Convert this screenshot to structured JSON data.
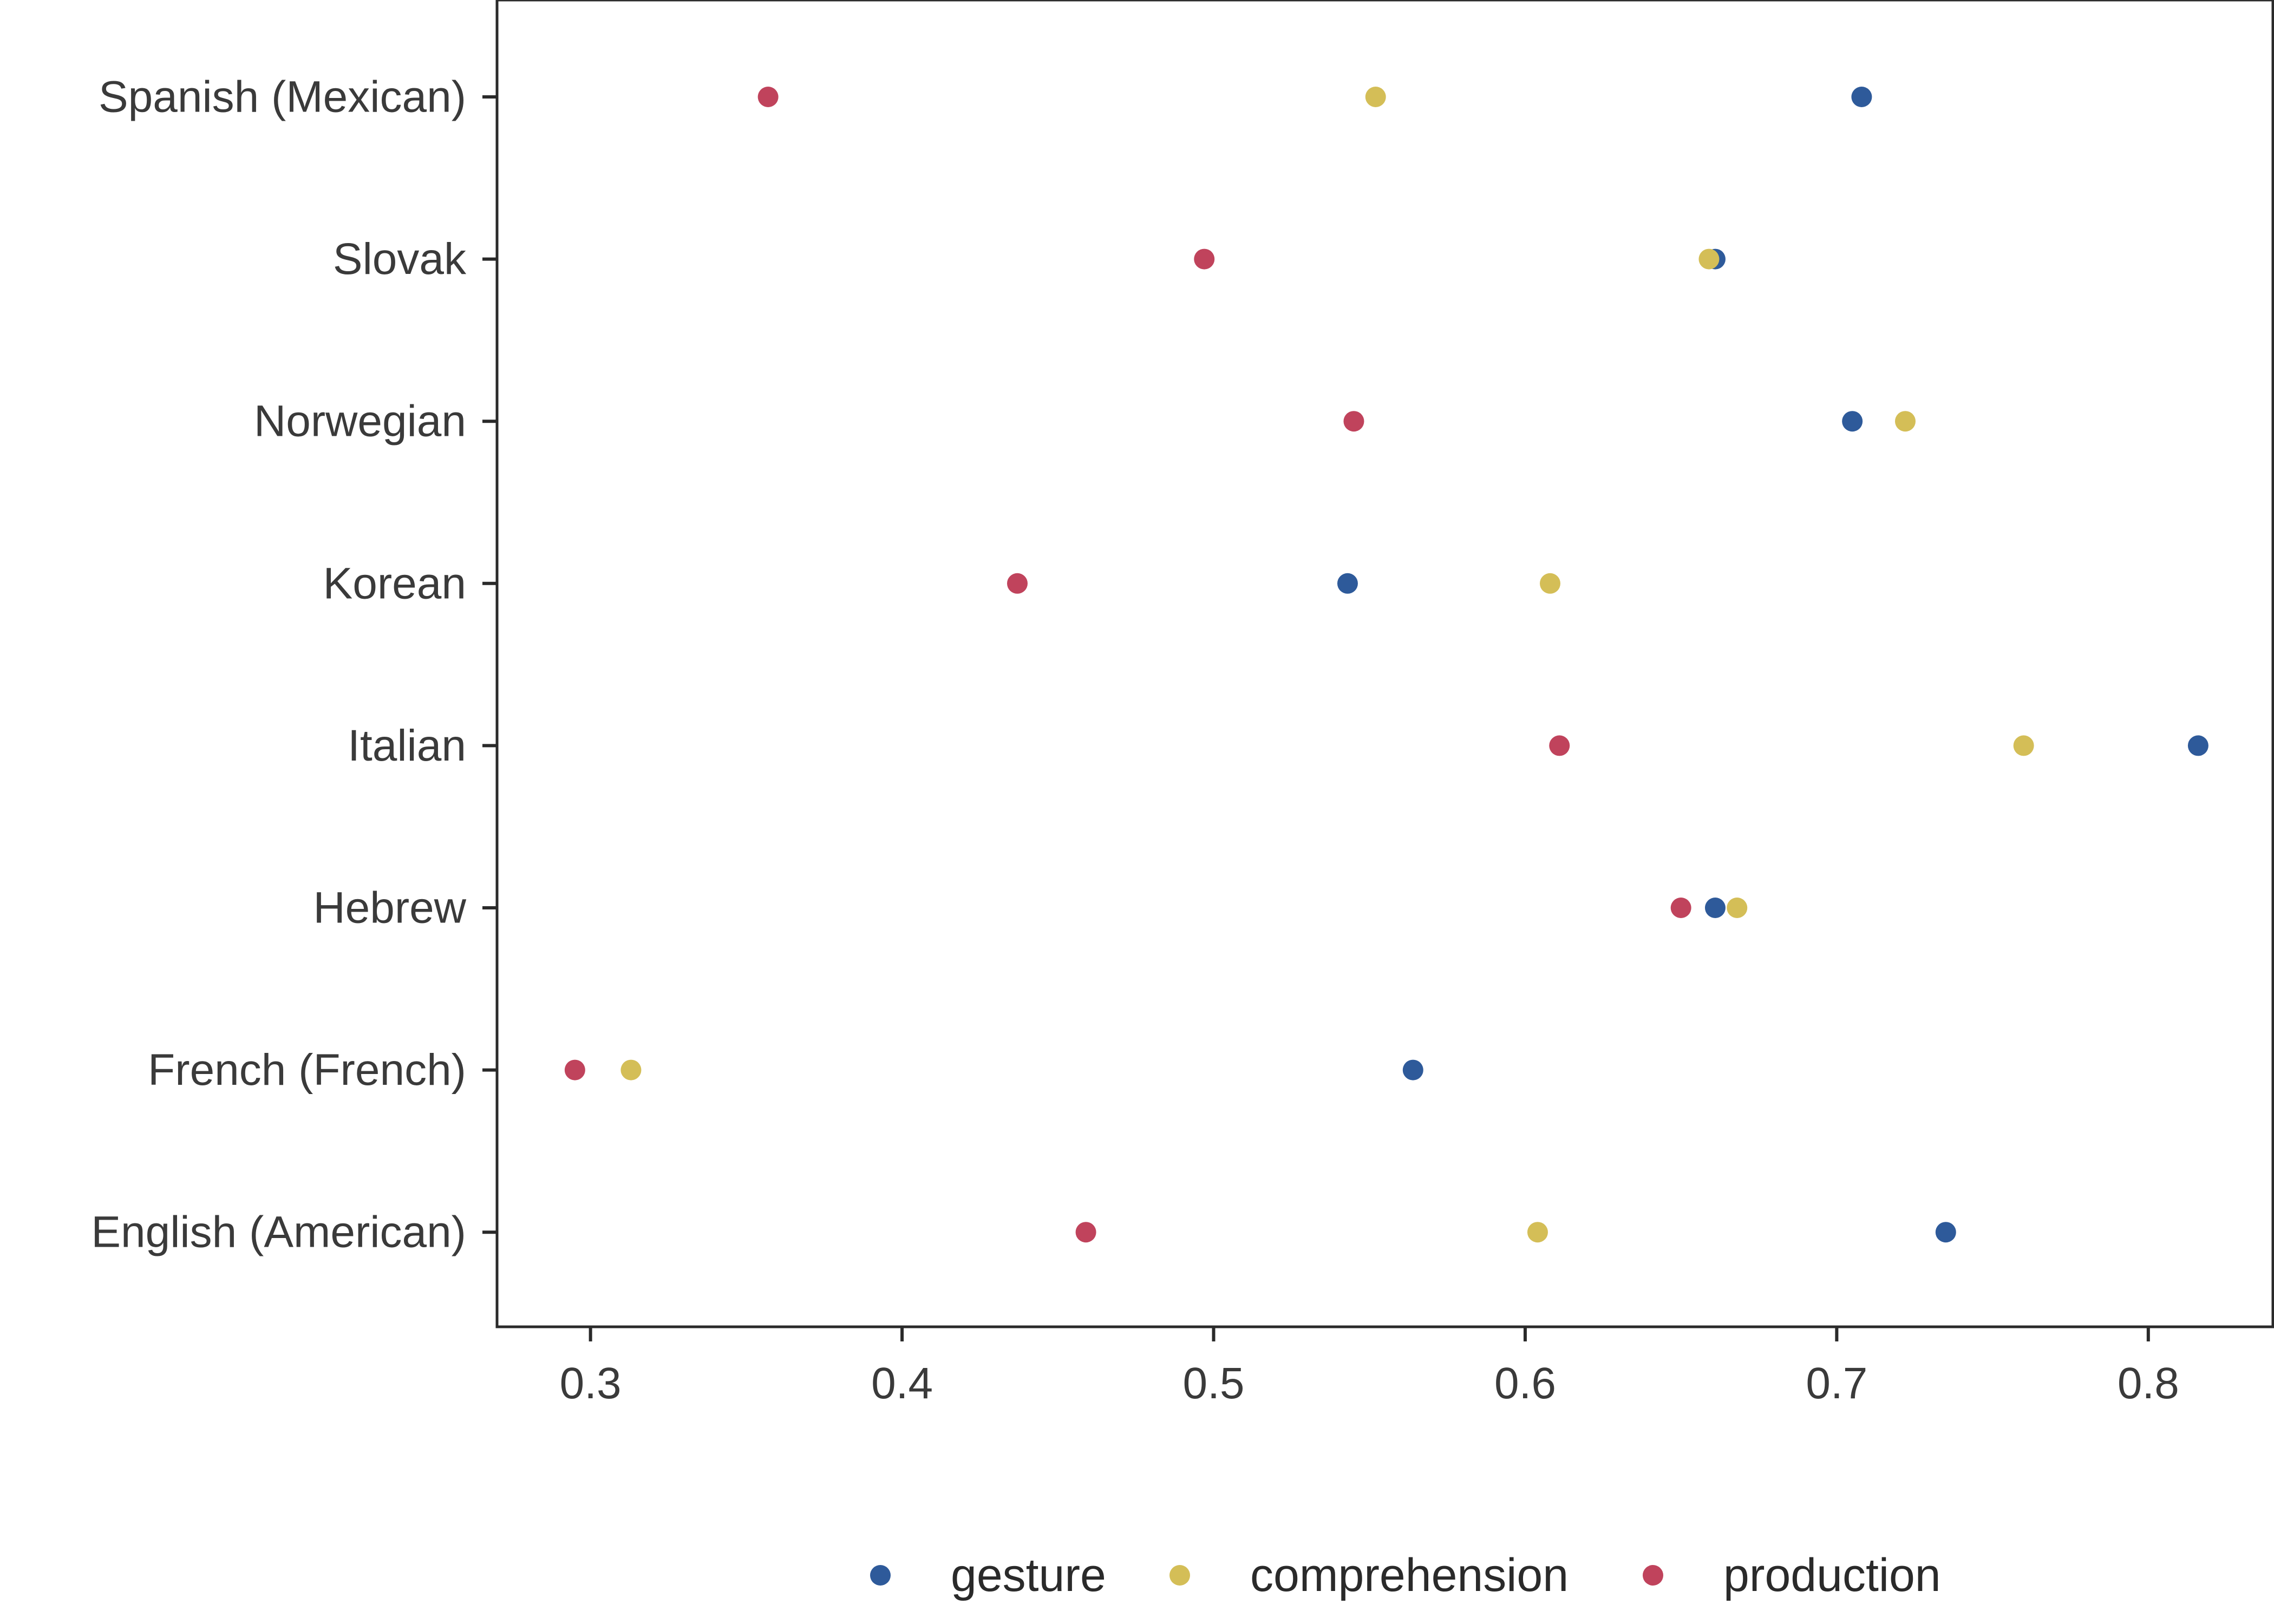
{
  "chart_data": {
    "type": "scatter",
    "title": "",
    "xlabel": "",
    "ylabel": "",
    "xlim": [
      0.27,
      0.84
    ],
    "x_ticks": [
      0.3,
      0.4,
      0.5,
      0.6,
      0.7,
      0.8
    ],
    "x_tick_labels": [
      "0.3",
      "0.4",
      "0.5",
      "0.6",
      "0.7",
      "0.8"
    ],
    "categories": [
      "Spanish (Mexican)",
      "Slovak",
      "Norwegian",
      "Korean",
      "Italian",
      "Hebrew",
      "French (French)",
      "English (American)"
    ],
    "grid": false,
    "legend_position": "bottom",
    "series": [
      {
        "name": "gesture",
        "color": "#2E5A9A",
        "values": [
          0.708,
          0.661,
          0.705,
          0.543,
          0.816,
          0.661,
          0.564,
          0.735
        ]
      },
      {
        "name": "comprehension",
        "color": "#D4BE57",
        "values": [
          0.552,
          0.659,
          0.722,
          0.608,
          0.76,
          0.668,
          0.313,
          0.604
        ]
      },
      {
        "name": "production",
        "color": "#C0435C",
        "values": [
          0.357,
          0.497,
          0.545,
          0.437,
          0.611,
          0.65,
          0.295,
          0.459
        ]
      }
    ]
  }
}
